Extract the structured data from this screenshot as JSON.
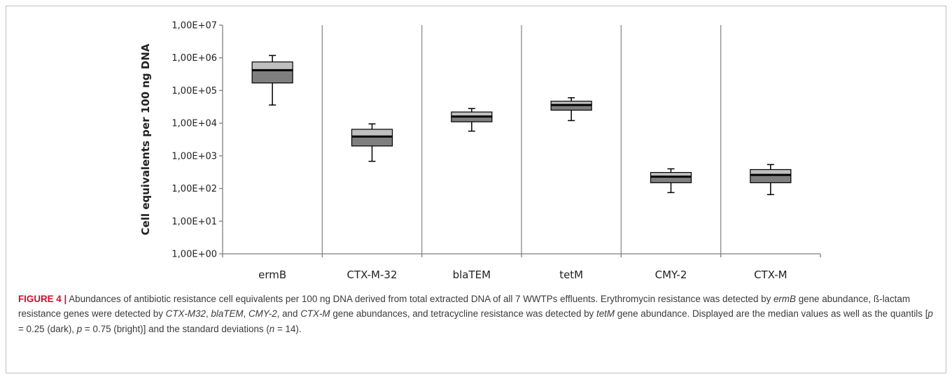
{
  "chart_data": {
    "type": "box",
    "ylabel": "Cell equivalents per 100 ng DNA",
    "yscale": "log",
    "ylim": [
      1,
      10000000
    ],
    "y_tick_labels": [
      "1,00E+00",
      "1,00E+01",
      "1,00E+02",
      "1,00E+03",
      "1,00E+04",
      "1,00E+05",
      "1,00E+06",
      "1,00E+07"
    ],
    "categories": [
      "ermB",
      "CTX-M-32",
      "blaTEM",
      "tetM",
      "CMY-2",
      "CTX-M"
    ],
    "boxes": [
      {
        "category": "ermB",
        "whisker_low": 36000,
        "q1": 170000,
        "median": 420000,
        "q3": 750000,
        "whisker_high": 1180000
      },
      {
        "category": "CTX-M-32",
        "whisker_low": 680,
        "q1": 2000,
        "median": 3900,
        "q3": 6500,
        "whisker_high": 9500
      },
      {
        "category": "blaTEM",
        "whisker_low": 5700,
        "q1": 11000,
        "median": 16000,
        "q3": 22000,
        "whisker_high": 28000
      },
      {
        "category": "tetM",
        "whisker_low": 12000,
        "q1": 25000,
        "median": 36000,
        "q3": 47000,
        "whisker_high": 60000
      },
      {
        "category": "CMY-2",
        "whisker_low": 75,
        "q1": 150,
        "median": 230,
        "q3": 310,
        "whisker_high": 400
      },
      {
        "category": "CTX-M",
        "whisker_low": 65,
        "q1": 150,
        "median": 260,
        "q3": 380,
        "whisker_high": 540
      }
    ],
    "colors": {
      "lower_box": "#7f7f7f",
      "upper_box": "#bfbfbf",
      "lines": "#000000",
      "axis": "#7f7f7f",
      "separators": "#8c8c8c"
    }
  },
  "caption": {
    "label": "FIGURE 4 |",
    "p1": " Abundances of antibiotic resistance cell equivalents per 100 ng DNA derived from total extracted DNA of all 7 WWTPs effluents. Erythromycin resistance was detected by ",
    "g1": "ermB",
    "p2": " gene abundance, ß-lactam resistance genes were detected by ",
    "g2": "CTX-M32",
    "p3": ", ",
    "g3": "blaTEM",
    "p4": ", ",
    "g4": "CMY-2",
    "p5": ", and ",
    "g5": "CTX-M",
    "p6": " gene abundances, and tetracycline resistance was detected by ",
    "g6": "tetM",
    "p7": " gene abundance. Displayed are the median values as well as the quantils [",
    "pv1": "p",
    "p8": " = 0.25 (dark), ",
    "pv2": "p",
    "p9": " = 0.75 (bright)] and the standard deviations (",
    "nv": "n",
    "p10": " = 14)."
  }
}
